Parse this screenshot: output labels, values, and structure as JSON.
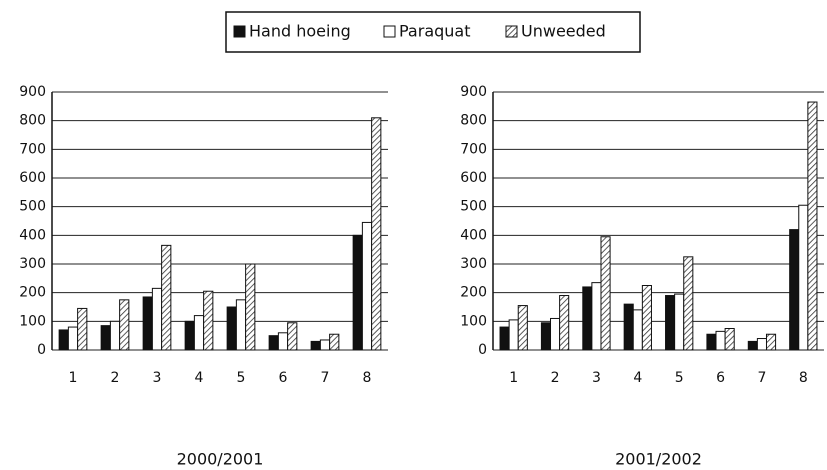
{
  "chart_data": [
    {
      "type": "bar",
      "title": "2000/2001",
      "categories": [
        "1",
        "2",
        "3",
        "4",
        "5",
        "6",
        "7",
        "8"
      ],
      "series": [
        {
          "name": "Hand hoeing",
          "color": "#111111",
          "values": [
            70,
            85,
            185,
            100,
            150,
            50,
            30,
            400
          ]
        },
        {
          "name": "Paraquat",
          "color": "#ffffff",
          "values": [
            80,
            100,
            215,
            120,
            175,
            60,
            35,
            445
          ]
        },
        {
          "name": "Unweeded",
          "color": "#333333",
          "pattern": "hatch",
          "values": [
            145,
            175,
            365,
            205,
            300,
            95,
            55,
            810
          ]
        }
      ],
      "ylim": [
        0,
        900
      ],
      "yticks": [
        0,
        100,
        200,
        300,
        400,
        500,
        600,
        700,
        800,
        900
      ],
      "grid": true
    },
    {
      "type": "bar",
      "title": "2001/2002",
      "categories": [
        "1",
        "2",
        "3",
        "4",
        "5",
        "6",
        "7",
        "8"
      ],
      "series": [
        {
          "name": "Hand hoeing",
          "color": "#111111",
          "values": [
            80,
            95,
            220,
            160,
            190,
            55,
            30,
            420
          ]
        },
        {
          "name": "Paraquat",
          "color": "#ffffff",
          "values": [
            105,
            110,
            235,
            140,
            195,
            65,
            40,
            505
          ]
        },
        {
          "name": "Unweeded",
          "color": "#333333",
          "pattern": "hatch",
          "values": [
            155,
            190,
            395,
            225,
            325,
            75,
            55,
            865
          ]
        }
      ],
      "ylim": [
        0,
        900
      ],
      "yticks": [
        0,
        100,
        200,
        300,
        400,
        500,
        600,
        700,
        800,
        900
      ],
      "grid": true
    }
  ]
}
